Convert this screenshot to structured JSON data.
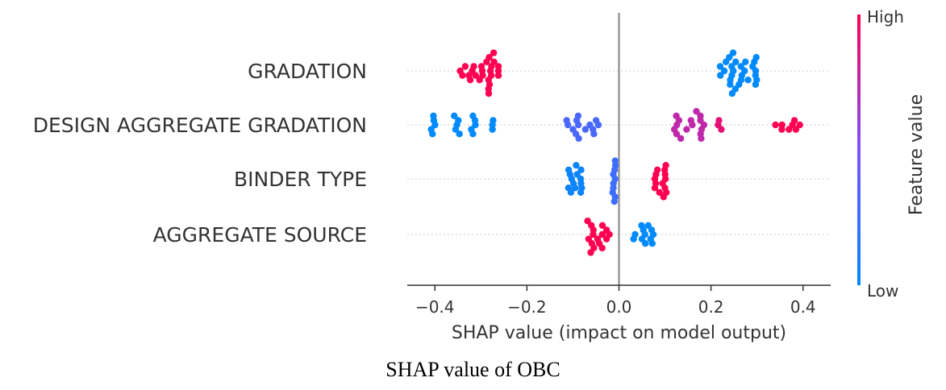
{
  "chart_data": {
    "type": "scatter",
    "subtype": "shap-beeswarm",
    "xlabel": "SHAP value (impact on model output)",
    "xlim": [
      -0.46,
      0.46
    ],
    "xticks": [
      {
        "value": -0.4,
        "label": "−0.4"
      },
      {
        "value": -0.2,
        "label": "−0.2"
      },
      {
        "value": 0.0,
        "label": "0.0"
      },
      {
        "value": 0.2,
        "label": "0.2"
      },
      {
        "value": 0.4,
        "label": "0.4"
      }
    ],
    "colorbar": {
      "title": "Feature value",
      "high_label": "High",
      "low_label": "Low",
      "high_color": "#ff0052",
      "low_color": "#008afb"
    },
    "features": [
      {
        "name": "GRADATION",
        "groups": [
          {
            "center": -0.3,
            "spread": 0.045,
            "value": 1.0,
            "count": 26
          },
          {
            "center": 0.26,
            "spread": 0.045,
            "value": 0.0,
            "count": 28
          }
        ]
      },
      {
        "name": "DESIGN AGGREGATE GRADATION",
        "groups": [
          {
            "center": -0.4,
            "spread": 0.012,
            "value": 0.0,
            "count": 5
          },
          {
            "center": -0.35,
            "spread": 0.015,
            "value": 0.0,
            "count": 5
          },
          {
            "center": -0.32,
            "spread": 0.01,
            "value": 0.0,
            "count": 5
          },
          {
            "center": -0.275,
            "spread": 0.004,
            "value": 0.0,
            "count": 3
          },
          {
            "center": -0.08,
            "spread": 0.04,
            "value": 0.3,
            "count": 14
          },
          {
            "center": 0.15,
            "spread": 0.035,
            "value": 0.75,
            "count": 16
          },
          {
            "center": 0.23,
            "spread": 0.015,
            "value": 0.9,
            "count": 3
          },
          {
            "center": 0.37,
            "spread": 0.03,
            "value": 1.0,
            "count": 8
          }
        ]
      },
      {
        "name": "BINDER TYPE",
        "groups": [
          {
            "center": -0.095,
            "spread": 0.015,
            "value": 0.05,
            "count": 14
          },
          {
            "center": -0.01,
            "spread": 0.004,
            "value": 0.25,
            "count": 10
          },
          {
            "center": 0.09,
            "spread": 0.013,
            "value": 1.0,
            "count": 14
          }
        ]
      },
      {
        "name": "AGGREGATE SOURCE",
        "groups": [
          {
            "center": -0.05,
            "spread": 0.03,
            "value": 1.0,
            "count": 16
          },
          {
            "center": 0.05,
            "spread": 0.025,
            "value": 0.0,
            "count": 12
          }
        ]
      }
    ]
  },
  "caption": "SHAP value of OBC"
}
